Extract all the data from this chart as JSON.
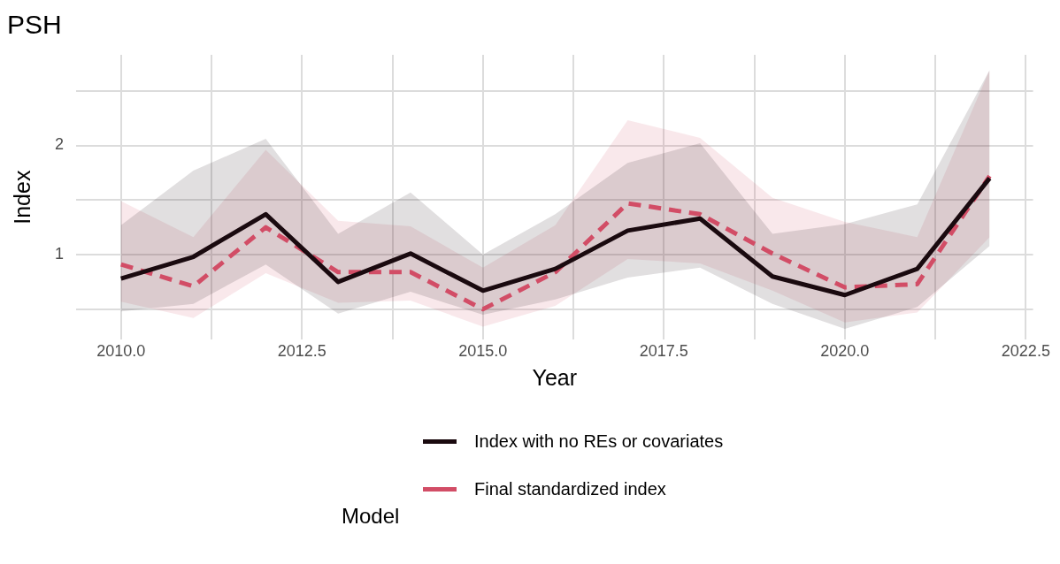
{
  "chart_data": {
    "type": "line",
    "title": "PSH",
    "xlabel": "Year",
    "ylabel": "Index",
    "legend_title": "Model",
    "x": [
      2010,
      2011,
      2012,
      2013,
      2014,
      2015,
      2016,
      2017,
      2018,
      2019,
      2020,
      2021,
      2022
    ],
    "series": [
      {
        "name": "Index with no REs or covariates",
        "color": "#1a0a0f",
        "line_style": "solid",
        "values": [
          0.78,
          0.98,
          1.37,
          0.75,
          1.01,
          0.67,
          0.87,
          1.22,
          1.33,
          0.8,
          0.63,
          0.87,
          1.7
        ],
        "lower": [
          0.48,
          0.55,
          0.91,
          0.46,
          0.66,
          0.45,
          0.59,
          0.79,
          0.88,
          0.55,
          0.32,
          0.52,
          1.08
        ],
        "upper": [
          1.27,
          1.77,
          2.06,
          1.19,
          1.57,
          1.0,
          1.37,
          1.84,
          2.02,
          1.19,
          1.28,
          1.46,
          2.69
        ]
      },
      {
        "name": "Final standardized index",
        "color": "#d24d66",
        "line_style": "dashed",
        "values": [
          0.91,
          0.71,
          1.25,
          0.84,
          0.84,
          0.5,
          0.84,
          1.47,
          1.37,
          1.01,
          0.7,
          0.73,
          1.72
        ],
        "lower": [
          0.57,
          0.42,
          0.83,
          0.56,
          0.58,
          0.34,
          0.53,
          0.96,
          0.92,
          0.67,
          0.38,
          0.47,
          1.16
        ],
        "upper": [
          1.49,
          1.16,
          1.96,
          1.31,
          1.26,
          0.88,
          1.27,
          2.23,
          2.07,
          1.52,
          1.3,
          1.16,
          2.69
        ]
      }
    ],
    "xlim": [
      2009.38,
      2022.6
    ],
    "xticks": [
      {
        "value": 2010,
        "label": "2010.0"
      },
      {
        "value": 2011.25,
        "label": null
      },
      {
        "value": 2012.5,
        "label": "2012.5"
      },
      {
        "value": 2013.75,
        "label": null
      },
      {
        "value": 2015,
        "label": "2015.0"
      },
      {
        "value": 2016.25,
        "label": null
      },
      {
        "value": 2017.5,
        "label": "2017.5"
      },
      {
        "value": 2018.75,
        "label": null
      },
      {
        "value": 2020,
        "label": "2020.0"
      },
      {
        "value": 2021.25,
        "label": null
      },
      {
        "value": 2022.5,
        "label": "2022.5"
      }
    ],
    "ylim": [
      0.22,
      2.83
    ],
    "yticks": [
      {
        "value": 0.5,
        "label": null
      },
      1,
      {
        "value": 1.5,
        "label": null
      },
      2,
      {
        "value": 2.5,
        "label": null
      }
    ],
    "grid": true,
    "legend": "bottom",
    "marker": "none"
  }
}
